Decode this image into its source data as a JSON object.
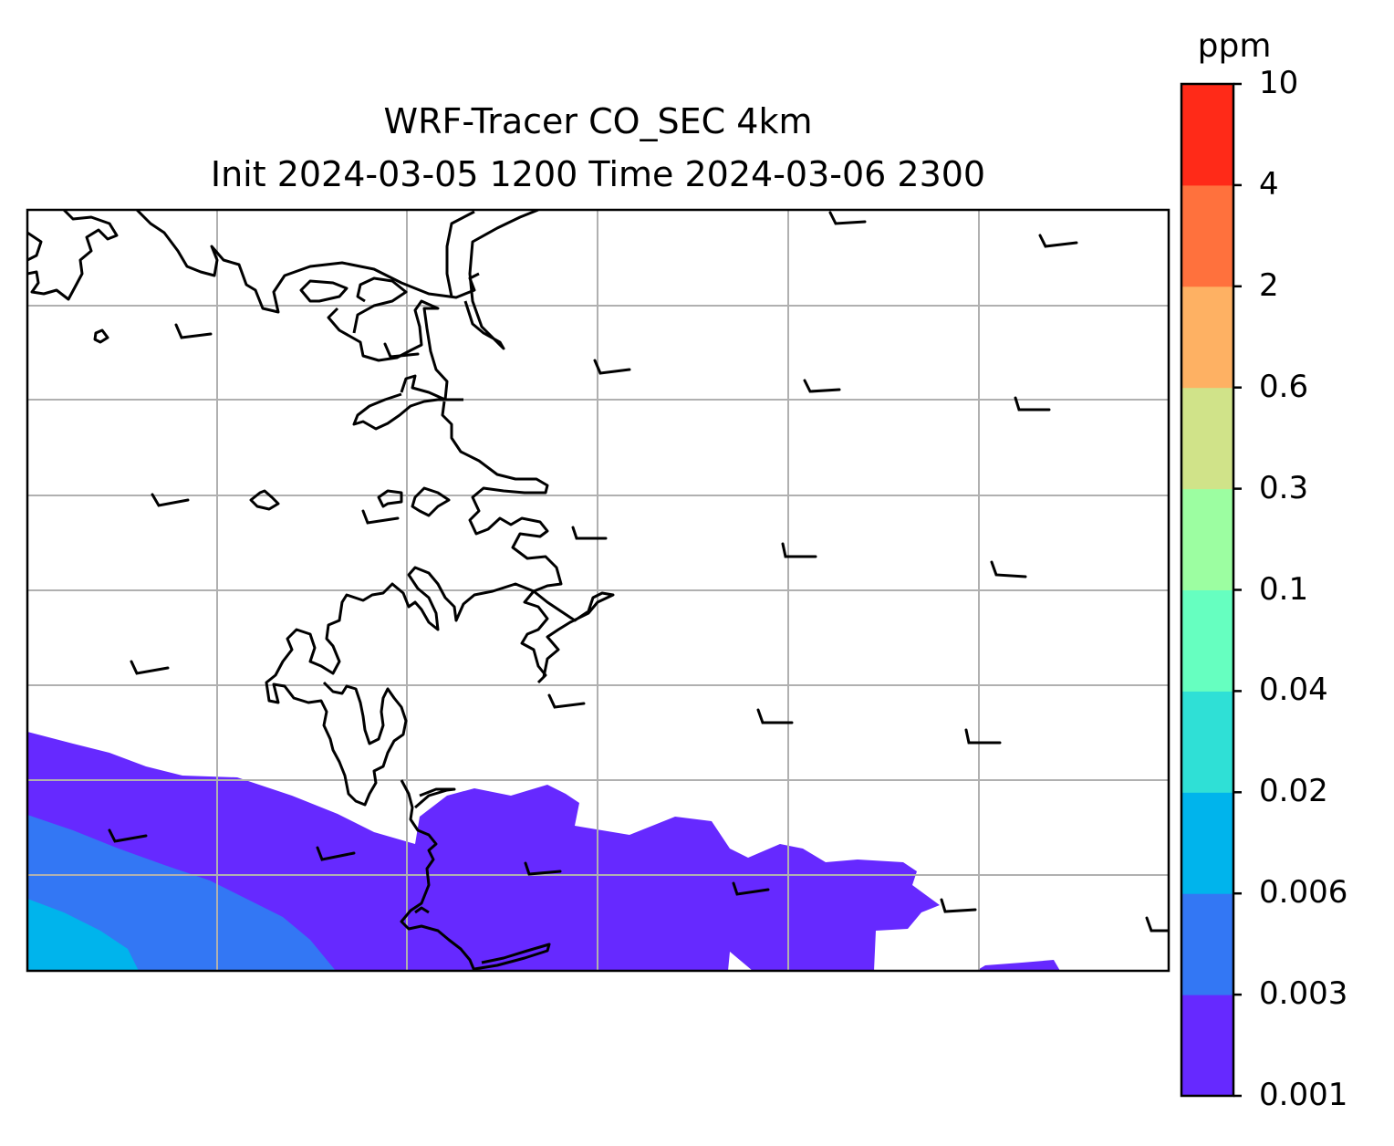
{
  "title": {
    "line1": "WRF-Tracer CO_SEC 4km",
    "line2": "Init 2024-03-05 1200 Time 2024-03-06 2300"
  },
  "colorbar": {
    "unit": "ppm",
    "levels": [
      "0.001",
      "0.003",
      "0.006",
      "0.02",
      "0.04",
      "0.1",
      "0.3",
      "0.6",
      "2",
      "4",
      "10"
    ],
    "colors": [
      "#6629ff",
      "#3377f4",
      "#00b4ec",
      "#2fe0d6",
      "#66ffc0",
      "#9cfea1",
      "#d0e389",
      "#feb163",
      "#ff713d",
      "#ff2a18"
    ]
  },
  "map": {
    "grid": "on",
    "coastline_color": "#000000",
    "grid_color": "#b0b0b0",
    "filled_levels_present": [
      "0.001",
      "0.003",
      "0.006"
    ],
    "wind_barbs": "present"
  }
}
